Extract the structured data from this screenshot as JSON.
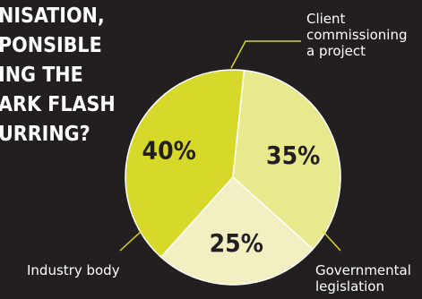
{
  "headline_lines": [
    "NISATION,",
    "PONSIBLE",
    "ING THE",
    "ARK FLASH",
    "URRING?"
  ],
  "chart_data": {
    "type": "pie",
    "slices": [
      {
        "label": "Client commissioning a project",
        "label_lines": [
          "Client",
          "commissioning",
          "a project"
        ],
        "value": 40,
        "value_label": "40%",
        "color": "#d6d82a"
      },
      {
        "label": "Governmental legislation",
        "label_lines": [
          "Governmental",
          "legislation"
        ],
        "value": 35,
        "value_label": "35%",
        "color": "#e8e88d"
      },
      {
        "label": "Industry body",
        "label_lines": [
          "Industry body"
        ],
        "value": 25,
        "value_label": "25%",
        "color": "#f2f0c2"
      }
    ],
    "value_label_color": "#231f20",
    "leader_line_color": "#d6d82a"
  }
}
